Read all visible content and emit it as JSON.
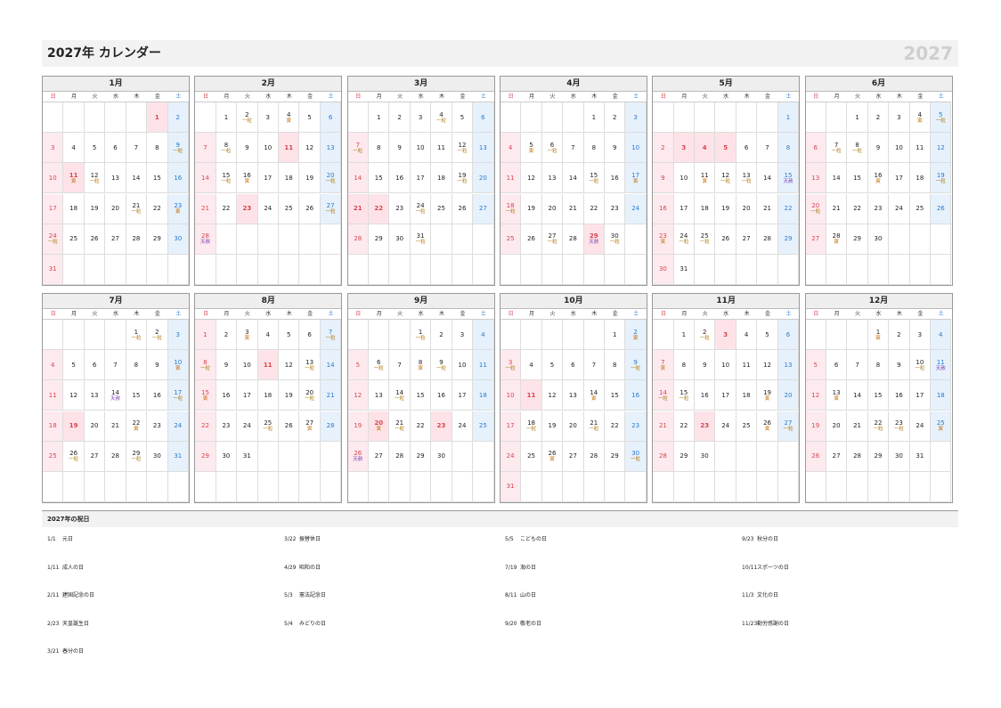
{
  "header": {
    "title": "2027年 カレンダー",
    "year": "2027"
  },
  "weekdays": [
    "日",
    "月",
    "火",
    "水",
    "木",
    "金",
    "土"
  ],
  "months": [
    {
      "name": "1月",
      "weeks": [
        [
          null,
          null,
          null,
          null,
          null,
          {
            "d": 1,
            "h": true
          },
          2
        ],
        [
          3,
          4,
          5,
          6,
          7,
          8,
          {
            "d": 9,
            "n": "一粒"
          }
        ],
        [
          10,
          {
            "d": 11,
            "n": "寅",
            "h": true
          },
          {
            "d": 12,
            "n": "一粒"
          },
          13,
          14,
          15,
          16
        ],
        [
          17,
          18,
          19,
          20,
          {
            "d": 21,
            "n": "一粒"
          },
          22,
          {
            "d": 23,
            "n": "寅"
          }
        ],
        [
          {
            "d": 24,
            "n": "一粒"
          },
          25,
          26,
          27,
          28,
          29,
          30
        ],
        [
          31
        ]
      ]
    },
    {
      "name": "2月",
      "weeks": [
        [
          null,
          1,
          {
            "d": 2,
            "n": "一粒"
          },
          3,
          {
            "d": 4,
            "n": "寅"
          },
          5,
          6
        ],
        [
          7,
          {
            "d": 8,
            "n": "一粒"
          },
          9,
          10,
          {
            "d": 11,
            "h": true
          },
          12,
          13
        ],
        [
          14,
          {
            "d": 15,
            "n": "一粒"
          },
          {
            "d": 16,
            "n": "寅"
          },
          17,
          18,
          19,
          {
            "d": 20,
            "n": "一粒"
          }
        ],
        [
          21,
          22,
          {
            "d": 23,
            "h": true
          },
          24,
          25,
          26,
          {
            "d": 27,
            "n": "一粒"
          }
        ],
        [
          {
            "d": 28,
            "n": "天赦"
          }
        ]
      ]
    },
    {
      "name": "3月",
      "weeks": [
        [
          null,
          1,
          2,
          3,
          {
            "d": 4,
            "n": "一粒"
          },
          5,
          6
        ],
        [
          {
            "d": 7,
            "n": "一粒"
          },
          8,
          9,
          10,
          11,
          {
            "d": 12,
            "n": "一粒"
          },
          13
        ],
        [
          14,
          15,
          16,
          17,
          18,
          {
            "d": 19,
            "n": "一粒"
          },
          20
        ],
        [
          {
            "d": 21,
            "h": true
          },
          {
            "d": 22,
            "h": true
          },
          23,
          {
            "d": 24,
            "n": "一粒"
          },
          25,
          26,
          27
        ],
        [
          28,
          29,
          30,
          {
            "d": 31,
            "n": "一粒"
          }
        ]
      ]
    },
    {
      "name": "4月",
      "weeks": [
        [
          null,
          null,
          null,
          null,
          1,
          2,
          3
        ],
        [
          4,
          {
            "d": 5,
            "n": "寅"
          },
          {
            "d": 6,
            "n": "一粒"
          },
          7,
          8,
          9,
          10
        ],
        [
          11,
          12,
          13,
          14,
          {
            "d": 15,
            "n": "一粒"
          },
          16,
          {
            "d": 17,
            "n": "寅"
          }
        ],
        [
          {
            "d": 18,
            "n": "一粒"
          },
          19,
          20,
          21,
          22,
          23,
          24
        ],
        [
          25,
          26,
          {
            "d": 27,
            "n": "一粒"
          },
          28,
          {
            "d": 29,
            "n": "天赦",
            "h": true
          },
          {
            "d": 30,
            "n": "一粒"
          }
        ]
      ]
    },
    {
      "name": "5月",
      "weeks": [
        [
          null,
          null,
          null,
          null,
          null,
          null,
          1
        ],
        [
          2,
          {
            "d": 3,
            "h": true
          },
          {
            "d": 4,
            "h": true
          },
          {
            "d": 5,
            "h": true
          },
          6,
          7,
          8
        ],
        [
          9,
          10,
          {
            "d": 11,
            "n": "寅"
          },
          {
            "d": 12,
            "n": "一粒"
          },
          {
            "d": 13,
            "n": "一粒"
          },
          14,
          {
            "d": 15,
            "n": "天赦"
          }
        ],
        [
          16,
          17,
          18,
          19,
          20,
          21,
          22
        ],
        [
          {
            "d": 23,
            "n": "寅"
          },
          {
            "d": 24,
            "n": "一粒"
          },
          {
            "d": 25,
            "n": "一粒"
          },
          26,
          27,
          28,
          29
        ],
        [
          30,
          31
        ]
      ]
    },
    {
      "name": "6月",
      "weeks": [
        [
          null,
          null,
          1,
          2,
          3,
          {
            "d": 4,
            "n": "寅"
          },
          {
            "d": 5,
            "n": "一粒"
          }
        ],
        [
          6,
          {
            "d": 7,
            "n": "一粒"
          },
          {
            "d": 8,
            "n": "一粒"
          },
          9,
          10,
          11,
          12
        ],
        [
          13,
          14,
          15,
          {
            "d": 16,
            "n": "寅"
          },
          17,
          18,
          {
            "d": 19,
            "n": "一粒"
          }
        ],
        [
          {
            "d": 20,
            "n": "一粒"
          },
          21,
          22,
          23,
          24,
          25,
          26
        ],
        [
          27,
          {
            "d": 28,
            "n": "寅"
          },
          29,
          30
        ]
      ]
    },
    {
      "name": "7月",
      "weeks": [
        [
          null,
          null,
          null,
          null,
          {
            "d": 1,
            "n": "一粒"
          },
          {
            "d": 2,
            "n": "一粒"
          },
          3
        ],
        [
          4,
          5,
          6,
          7,
          8,
          9,
          {
            "d": 10,
            "n": "寅"
          }
        ],
        [
          11,
          12,
          13,
          {
            "d": 14,
            "n": "天赦"
          },
          15,
          16,
          {
            "d": 17,
            "n": "一粒"
          }
        ],
        [
          18,
          {
            "d": 19,
            "h": true
          },
          20,
          21,
          {
            "d": 22,
            "n": "寅"
          },
          23,
          24
        ],
        [
          25,
          {
            "d": 26,
            "n": "一粒"
          },
          27,
          28,
          {
            "d": 29,
            "n": "一粒"
          },
          30,
          31
        ]
      ]
    },
    {
      "name": "8月",
      "weeks": [
        [
          1,
          2,
          {
            "d": 3,
            "n": "寅"
          },
          4,
          5,
          6,
          {
            "d": 7,
            "n": "一粒"
          }
        ],
        [
          {
            "d": 8,
            "n": "一粒"
          },
          9,
          10,
          {
            "d": 11,
            "h": true
          },
          12,
          {
            "d": 13,
            "n": "一粒"
          },
          14
        ],
        [
          {
            "d": 15,
            "n": "寅"
          },
          16,
          17,
          18,
          19,
          {
            "d": 20,
            "n": "一粒"
          },
          21
        ],
        [
          22,
          23,
          24,
          {
            "d": 25,
            "n": "一粒"
          },
          26,
          {
            "d": 27,
            "n": "寅"
          },
          28
        ],
        [
          29,
          30,
          31
        ]
      ]
    },
    {
      "name": "9月",
      "weeks": [
        [
          null,
          null,
          null,
          {
            "d": 1,
            "n": "一粒"
          },
          2,
          3,
          4
        ],
        [
          5,
          {
            "d": 6,
            "n": "一粒"
          },
          7,
          {
            "d": 8,
            "n": "寅"
          },
          {
            "d": 9,
            "n": "一粒"
          },
          10,
          11
        ],
        [
          12,
          13,
          {
            "d": 14,
            "n": "一粒"
          },
          15,
          16,
          17,
          18
        ],
        [
          19,
          {
            "d": 20,
            "n": "寅",
            "h": true
          },
          {
            "d": 21,
            "n": "一粒"
          },
          22,
          {
            "d": 23,
            "h": true
          },
          24,
          25
        ],
        [
          {
            "d": 26,
            "n": "天赦"
          },
          27,
          28,
          29,
          30
        ]
      ]
    },
    {
      "name": "10月",
      "weeks": [
        [
          null,
          null,
          null,
          null,
          null,
          1,
          {
            "d": 2,
            "n": "寅"
          }
        ],
        [
          {
            "d": 3,
            "n": "一粒"
          },
          4,
          5,
          6,
          7,
          8,
          {
            "d": 9,
            "n": "一粒"
          }
        ],
        [
          10,
          {
            "d": 11,
            "h": true
          },
          12,
          13,
          {
            "d": 14,
            "n": "寅"
          },
          15,
          16
        ],
        [
          17,
          {
            "d": 18,
            "n": "一粒"
          },
          19,
          20,
          {
            "d": 21,
            "n": "一粒"
          },
          22,
          23
        ],
        [
          24,
          25,
          {
            "d": 26,
            "n": "寅"
          },
          27,
          28,
          29,
          {
            "d": 30,
            "n": "一粒"
          }
        ],
        [
          31
        ]
      ]
    },
    {
      "name": "11月",
      "weeks": [
        [
          null,
          1,
          {
            "d": 2,
            "n": "一粒"
          },
          {
            "d": 3,
            "h": true
          },
          4,
          5,
          6
        ],
        [
          {
            "d": 7,
            "n": "寅"
          },
          8,
          9,
          10,
          11,
          12,
          13
        ],
        [
          {
            "d": 14,
            "n": "一粒"
          },
          {
            "d": 15,
            "n": "一粒"
          },
          16,
          17,
          18,
          {
            "d": 19,
            "n": "寅"
          },
          20
        ],
        [
          21,
          22,
          {
            "d": 23,
            "h": true
          },
          24,
          25,
          {
            "d": 26,
            "n": "寅"
          },
          {
            "d": 27,
            "n": "一粒"
          }
        ],
        [
          28,
          29,
          30
        ]
      ]
    },
    {
      "name": "12月",
      "weeks": [
        [
          null,
          null,
          null,
          {
            "d": 1,
            "n": "寅"
          },
          2,
          3,
          4
        ],
        [
          5,
          6,
          7,
          8,
          9,
          {
            "d": 10,
            "n": "一粒"
          },
          {
            "d": 11,
            "n": "天赦"
          }
        ],
        [
          12,
          {
            "d": 13,
            "n": "寅"
          },
          14,
          15,
          16,
          17,
          18
        ],
        [
          19,
          20,
          21,
          {
            "d": 22,
            "n": "一粒"
          },
          {
            "d": 23,
            "n": "一粒"
          },
          24,
          {
            "d": 25,
            "n": "寅"
          }
        ],
        [
          26,
          27,
          28,
          29,
          30,
          31
        ]
      ]
    }
  ],
  "holidays": {
    "title": "2027年の祝日",
    "items": [
      {
        "date": "1/1",
        "name": "元日"
      },
      {
        "date": "1/11",
        "name": "成人の日"
      },
      {
        "date": "2/11",
        "name": "建国記念の日"
      },
      {
        "date": "2/23",
        "name": "天皇誕生日"
      },
      {
        "date": "3/21",
        "name": "春分の日"
      },
      {
        "date": "3/22",
        "name": "振替休日"
      },
      {
        "date": "4/29",
        "name": "昭和の日"
      },
      {
        "date": "5/3",
        "name": "憲法記念日"
      },
      {
        "date": "5/4",
        "name": "みどりの日"
      },
      {
        "date": "5/5",
        "name": "こどもの日"
      },
      {
        "date": "7/19",
        "name": "海の日"
      },
      {
        "date": "8/11",
        "name": "山の日"
      },
      {
        "date": "9/20",
        "name": "敬老の日"
      },
      {
        "date": "9/23",
        "name": "秋分の日"
      },
      {
        "date": "10/11",
        "name": "スポーツの日"
      },
      {
        "date": "11/3",
        "name": "文化の日"
      },
      {
        "date": "11/23",
        "name": "勤労感謝の日"
      }
    ]
  }
}
